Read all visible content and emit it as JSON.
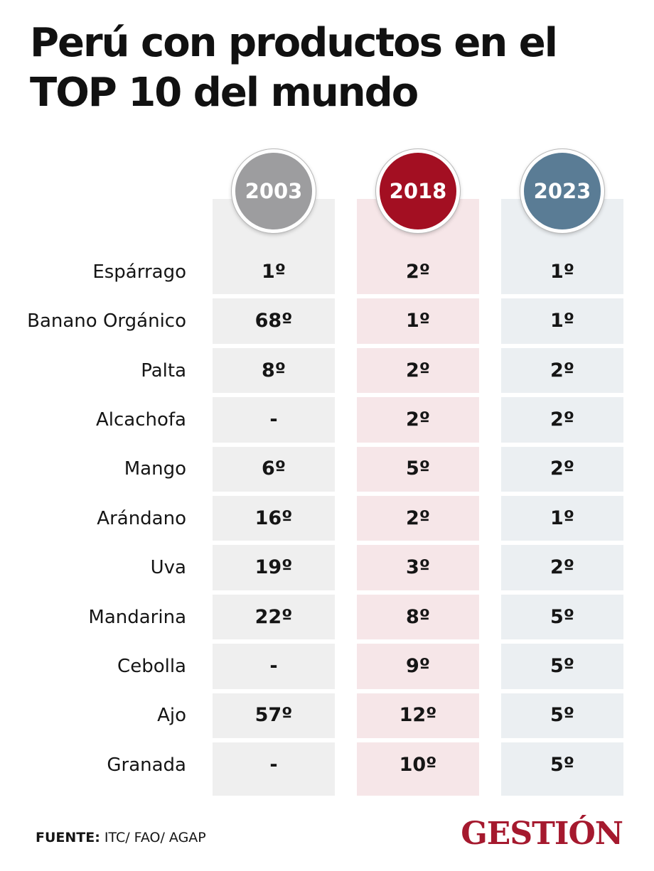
{
  "header": {
    "title": "Perú con productos en el TOP 10 del mundo"
  },
  "colors": {
    "c2003": "#9d9d9f",
    "c2018": "#a30f22",
    "c2023": "#5a7c95"
  },
  "chart_data": {
    "type": "table",
    "title": "Perú con productos en el TOP 10 del mundo",
    "columns": [
      "2003",
      "2018",
      "2023"
    ],
    "rows": [
      {
        "label": "Espárrago",
        "values": [
          "1º",
          "2º",
          "1º"
        ]
      },
      {
        "label": "Banano Orgánico",
        "values": [
          "68º",
          "1º",
          "1º"
        ]
      },
      {
        "label": "Palta",
        "values": [
          "8º",
          "2º",
          "2º"
        ]
      },
      {
        "label": "Alcachofa",
        "values": [
          "-",
          "2º",
          "2º"
        ]
      },
      {
        "label": "Mango",
        "values": [
          "6º",
          "5º",
          "2º"
        ]
      },
      {
        "label": "Arándano",
        "values": [
          "16º",
          "2º",
          "1º"
        ]
      },
      {
        "label": "Uva",
        "values": [
          "19º",
          "3º",
          "2º"
        ]
      },
      {
        "label": "Mandarina",
        "values": [
          "22º",
          "8º",
          "5º"
        ]
      },
      {
        "label": "Cebolla",
        "values": [
          "-",
          "9º",
          "5º"
        ]
      },
      {
        "label": "Ajo",
        "values": [
          "57º",
          "12º",
          "5º"
        ]
      },
      {
        "label": "Granada",
        "values": [
          "-",
          "10º",
          "5º"
        ]
      }
    ]
  },
  "footer": {
    "source_label": "FUENTE:",
    "source_text": " ITC/ FAO/ AGAP",
    "logo": "GESTIÓN"
  }
}
